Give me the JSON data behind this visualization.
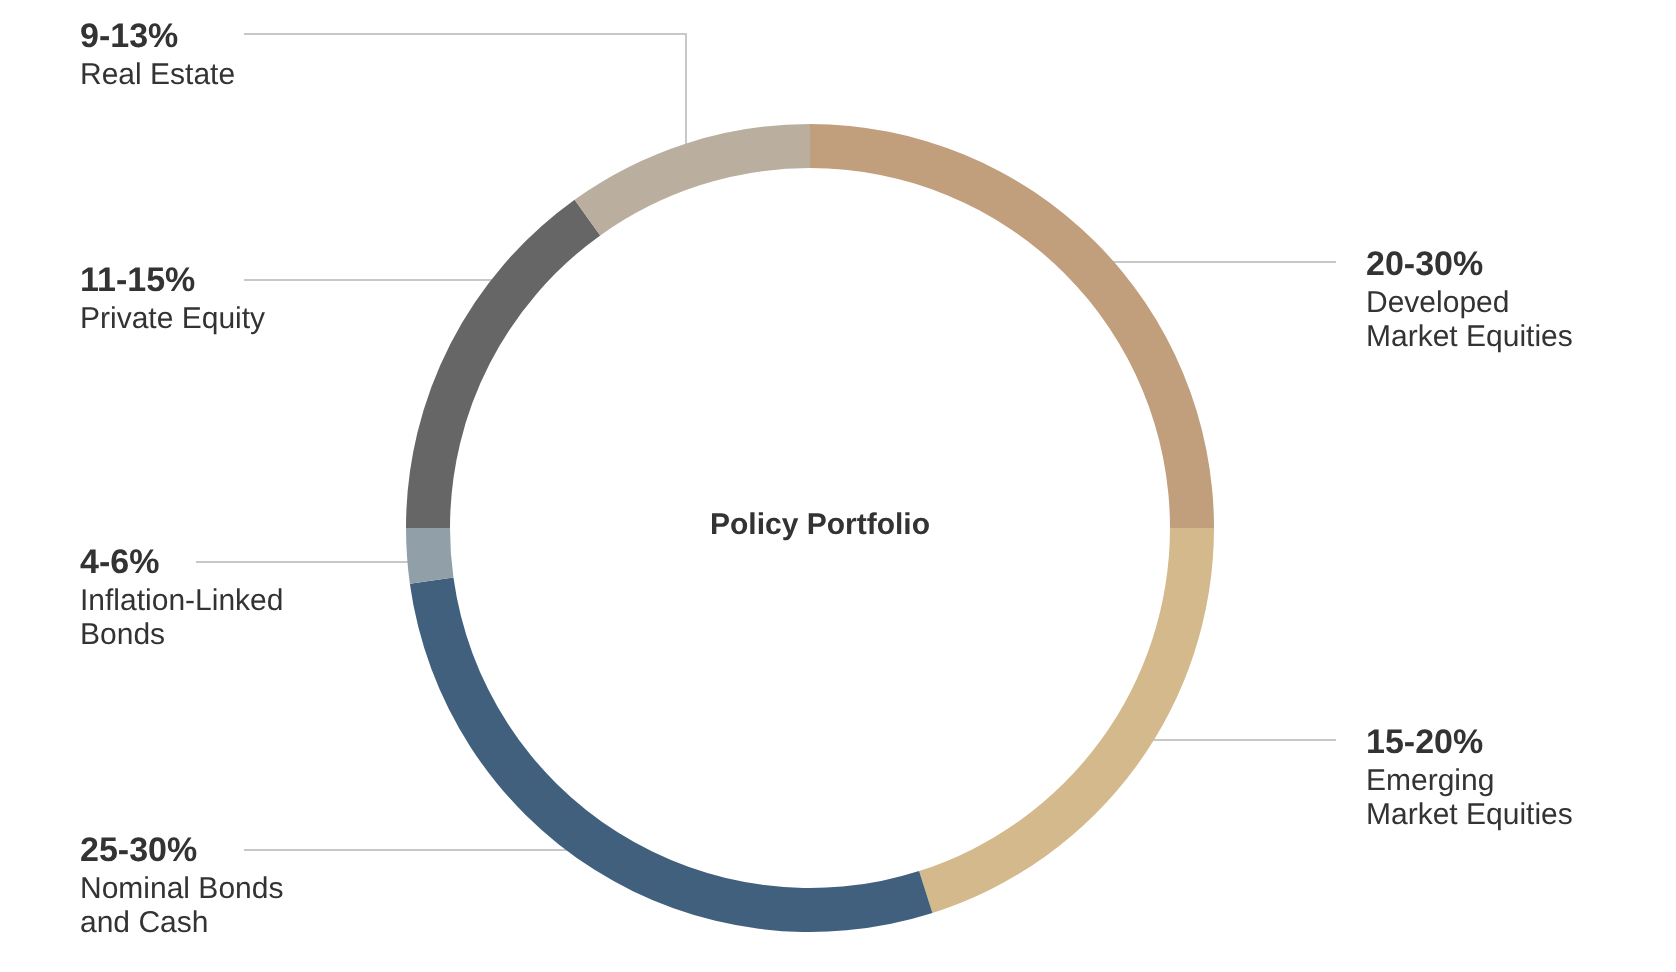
{
  "chart_data": {
    "type": "donut",
    "title": "Policy Portfolio",
    "categories": [
      "Developed Market Equities",
      "Emerging Market Equities",
      "Nominal Bonds and Cash",
      "Inflation-Linked Bonds",
      "Private Equity",
      "Real Estate"
    ],
    "values": [
      25,
      20.1,
      27.7,
      2.2,
      15.1,
      9.9
    ],
    "colors": [
      "#c19e7c",
      "#d3b98b",
      "#41607e",
      "#919fa8",
      "#666666",
      "#baae9f"
    ],
    "annotations": [
      "20-30%",
      "15-20%",
      "25-30%",
      "4-6%",
      "11-15%",
      "9-13%"
    ]
  }
}
